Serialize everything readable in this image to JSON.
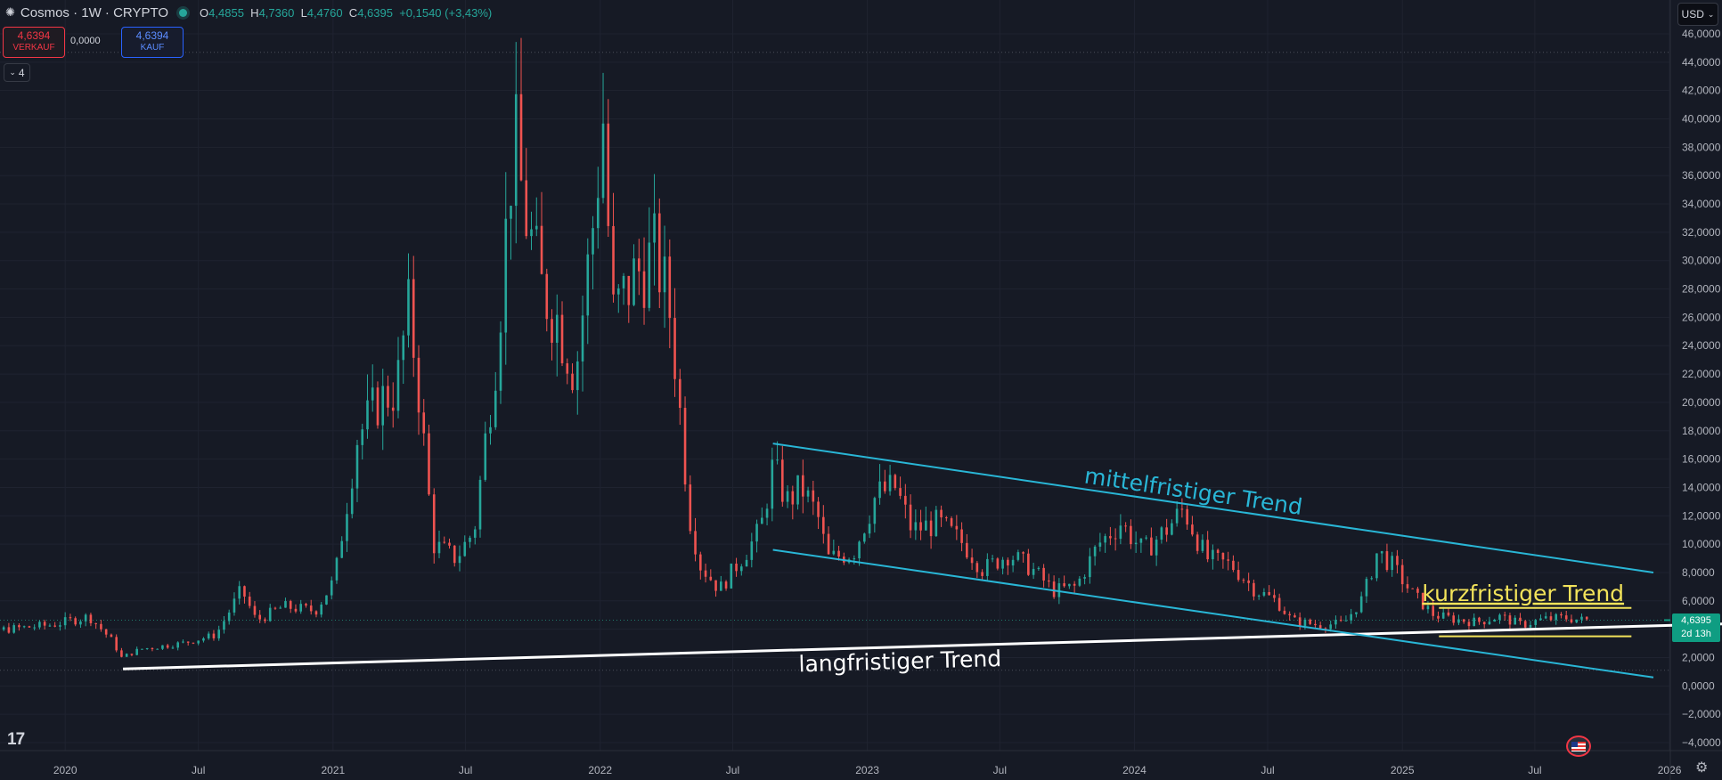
{
  "header": {
    "symbol": "Cosmos · 1W · CRYPTO",
    "open": "4,4855",
    "high": "4,7360",
    "low": "4,4760",
    "close": "4,6395",
    "change": "+0,1540 (+3,43%)",
    "labels": {
      "o": "O",
      "h": "H",
      "l": "L",
      "c": "C"
    }
  },
  "trade": {
    "sell_price": "4,6394",
    "sell_label": "VERKAUF",
    "spread": "0,0000",
    "buy_price": "4,6394",
    "buy_label": "KAUF"
  },
  "indicator_toggle": "4",
  "currency": "USD",
  "price_marker": {
    "price": "4,6395",
    "countdown": "2d 13h"
  },
  "colors": {
    "up": "#26a69a",
    "down": "#ef5350",
    "medium_trend": "#29b6d6",
    "short_trend": "#f2e35a",
    "long_trend": "#ffffff"
  },
  "chart_data": {
    "type": "candlestick",
    "title": "Cosmos · 1W · CRYPTO",
    "y_axis": {
      "min": -4,
      "max": 46,
      "step": 2,
      "tick_labels": [
        "46,0000",
        "44,0000",
        "42,0000",
        "40,0000",
        "38,0000",
        "36,0000",
        "34,0000",
        "32,0000",
        "30,0000",
        "28,0000",
        "26,0000",
        "24,0000",
        "22,0000",
        "20,0000",
        "18,0000",
        "16,0000",
        "14,0000",
        "12,0000",
        "10,0000",
        "8,0000",
        "6,0000",
        "4,0000",
        "2,0000",
        "0,0000",
        "−2,0000",
        "−4,0000"
      ]
    },
    "x_axis": {
      "ticks": [
        {
          "label": "2020",
          "date": "2020-01-01"
        },
        {
          "label": "Jul",
          "date": "2020-07-01"
        },
        {
          "label": "2021",
          "date": "2021-01-01"
        },
        {
          "label": "Jul",
          "date": "2021-07-01"
        },
        {
          "label": "2022",
          "date": "2022-01-01"
        },
        {
          "label": "Jul",
          "date": "2022-07-01"
        },
        {
          "label": "2023",
          "date": "2023-01-01"
        },
        {
          "label": "Jul",
          "date": "2023-07-01"
        },
        {
          "label": "2024",
          "date": "2024-01-01"
        },
        {
          "label": "Jul",
          "date": "2024-07-01"
        },
        {
          "label": "2025",
          "date": "2025-01-01"
        },
        {
          "label": "Jul",
          "date": "2025-07-01"
        },
        {
          "label": "2026",
          "date": "2026-01-01"
        }
      ],
      "range": [
        "2019-07-01",
        "2026-04-01"
      ]
    },
    "price_path": [
      [
        "2019-07-10",
        3.5
      ],
      [
        "2019-10-01",
        3.9
      ],
      [
        "2019-12-20",
        4.3
      ],
      [
        "2020-02-10",
        4.9
      ],
      [
        "2020-03-12",
        3.2
      ],
      [
        "2020-03-25",
        2.0
      ],
      [
        "2020-04-20",
        2.6
      ],
      [
        "2020-06-15",
        3.0
      ],
      [
        "2020-08-01",
        3.6
      ],
      [
        "2020-09-05",
        6.8
      ],
      [
        "2020-09-25",
        4.6
      ],
      [
        "2020-11-01",
        5.6
      ],
      [
        "2020-12-15",
        5.3
      ],
      [
        "2021-01-10",
        7.5
      ],
      [
        "2021-02-10",
        17.5
      ],
      [
        "2021-03-10",
        20.0
      ],
      [
        "2021-04-05",
        21.0
      ],
      [
        "2021-04-20",
        26.5
      ],
      [
        "2021-05-01",
        23.0
      ],
      [
        "2021-05-25",
        10.0
      ],
      [
        "2021-06-25",
        9.0
      ],
      [
        "2021-07-20",
        11.0
      ],
      [
        "2021-08-20",
        24.0
      ],
      [
        "2021-09-12",
        39.0
      ],
      [
        "2021-09-25",
        34.0
      ],
      [
        "2021-10-20",
        28.0
      ],
      [
        "2021-11-10",
        26.0
      ],
      [
        "2021-12-05",
        22.0
      ],
      [
        "2021-12-28",
        32.0
      ],
      [
        "2022-01-12",
        40.0
      ],
      [
        "2022-01-25",
        26.0
      ],
      [
        "2022-02-25",
        29.0
      ],
      [
        "2022-03-25",
        30.5
      ],
      [
        "2022-04-15",
        26.0
      ],
      [
        "2022-05-10",
        12.0
      ],
      [
        "2022-05-25",
        8.5
      ],
      [
        "2022-06-20",
        6.8
      ],
      [
        "2022-07-20",
        9.0
      ],
      [
        "2022-08-15",
        11.0
      ],
      [
        "2022-09-01",
        15.5
      ],
      [
        "2022-09-20",
        13.0
      ],
      [
        "2022-10-10",
        14.0
      ],
      [
        "2022-11-01",
        12.0
      ],
      [
        "2022-11-15",
        9.0
      ],
      [
        "2022-12-20",
        9.4
      ],
      [
        "2023-01-20",
        13.5
      ],
      [
        "2023-02-15",
        14.0
      ],
      [
        "2023-03-10",
        11.0
      ],
      [
        "2023-04-15",
        11.5
      ],
      [
        "2023-05-20",
        10.0
      ],
      [
        "2023-06-15",
        8.2
      ],
      [
        "2023-07-20",
        9.3
      ],
      [
        "2023-08-20",
        8.3
      ],
      [
        "2023-09-20",
        6.7
      ],
      [
        "2023-10-20",
        7.0
      ],
      [
        "2023-11-20",
        10.0
      ],
      [
        "2023-12-20",
        11.5
      ],
      [
        "2024-01-20",
        9.5
      ],
      [
        "2024-02-20",
        11.0
      ],
      [
        "2024-03-15",
        12.5
      ],
      [
        "2024-04-15",
        9.0
      ],
      [
        "2024-05-20",
        8.5
      ],
      [
        "2024-06-20",
        6.8
      ],
      [
        "2024-07-20",
        6.0
      ],
      [
        "2024-08-10",
        4.6
      ],
      [
        "2024-09-15",
        4.3
      ],
      [
        "2024-10-20",
        4.4
      ],
      [
        "2024-11-15",
        6.2
      ],
      [
        "2024-12-05",
        9.5
      ],
      [
        "2024-12-25",
        8.5
      ],
      [
        "2025-01-20",
        6.6
      ],
      [
        "2025-02-20",
        5.0
      ],
      [
        "2025-03-20",
        4.7
      ],
      [
        "2025-04-20",
        4.5
      ],
      [
        "2025-05-20",
        4.9
      ],
      [
        "2025-06-20",
        4.3
      ],
      [
        "2025-07-20",
        4.7
      ],
      [
        "2025-08-20",
        4.8
      ],
      [
        "2025-09-10",
        4.64
      ]
    ],
    "annotations": [
      {
        "type": "trendline",
        "name": "langfristiger Trend",
        "color": "#ffffff",
        "points": [
          [
            "2020-03-20",
            1.2
          ],
          [
            "2026-04-01",
            4.4
          ]
        ],
        "label": "langfristiger Trend",
        "label_anchor": [
          "2023-02-15",
          1.2
        ]
      },
      {
        "type": "trendline",
        "name": "mittelfristiger Trend upper",
        "color": "#29b6d6",
        "points": [
          [
            "2022-08-25",
            17.1
          ],
          [
            "2025-12-10",
            8.0
          ]
        ],
        "label": "mittelfristiger Trend",
        "label_anchor": [
          "2024-03-20",
          13.2
        ]
      },
      {
        "type": "trendline",
        "name": "mittelfristiger Trend lower",
        "color": "#29b6d6",
        "points": [
          [
            "2022-08-25",
            9.6
          ],
          [
            "2025-12-10",
            0.6
          ]
        ]
      },
      {
        "type": "hline",
        "name": "kurzfristiger Trend top",
        "color": "#f2e35a",
        "points": [
          [
            "2025-02-20",
            5.5
          ],
          [
            "2025-11-10",
            5.5
          ]
        ],
        "label": "kurzfristiger Trend",
        "label_anchor": [
          "2025-06-15",
          6.0
        ]
      },
      {
        "type": "hline",
        "name": "kurzfristiger Trend bottom",
        "color": "#f2e35a",
        "points": [
          [
            "2025-02-20",
            3.5
          ],
          [
            "2025-11-10",
            3.5
          ]
        ]
      }
    ],
    "reference_lines": [
      {
        "name": "all-time-high",
        "value": 44.7
      },
      {
        "name": "last-price",
        "value": 4.6395
      },
      {
        "name": "pre-2020-low",
        "value": 1.1
      }
    ]
  }
}
